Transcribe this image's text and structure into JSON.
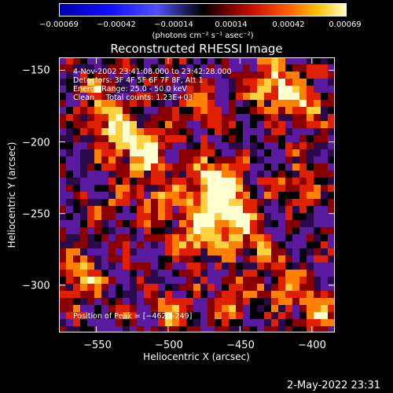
{
  "colorbar": {
    "ticks": [
      "−0.00069",
      "−0.00042",
      "−0.00014",
      "0.00014",
      "0.00042",
      "0.00069"
    ],
    "units": "(photons cm⁻² s⁻¹ asec⁻²)"
  },
  "info": {
    "time_range": "4-Nov-2002 23:41:08.000 to 23:42:28.000",
    "detectors": "Detectors: 3F 4F 5F 6F 7F 8F, Att 1",
    "energy": "Energy Range: 25.0 - 50.0 keV",
    "clean": "Clean     Total counts: 1.23E+03"
  },
  "peak_label": "Position of Peak = [−462,−249]",
  "timestamp": "2-May-2022 23:31",
  "chart_data": {
    "type": "heatmap",
    "title": "Reconstructed RHESSI Image",
    "xlabel": "Heliocentric X (arcsec)",
    "ylabel": "Heliocentric Y (arcsec)",
    "xlim": [
      -576,
      -384
    ],
    "ylim": [
      -333,
      -141
    ],
    "x_ticks": [
      -550,
      -500,
      -450,
      -400
    ],
    "x_tick_labels": [
      "−550",
      "−500",
      "−450",
      "−400"
    ],
    "y_ticks": [
      -150,
      -200,
      -250,
      -300
    ],
    "y_tick_labels": [
      "−150",
      "−200",
      "−250",
      "−300"
    ],
    "colorbar_range": [
      -0.00069,
      0.00069
    ],
    "peak": [
      -462,
      -249
    ],
    "colors": [
      "#2a0a4a",
      "#5a1aa0",
      "#000000",
      "#8a0000",
      "#e02000",
      "#ff8000",
      "#ffd040",
      "#ffffd0"
    ]
  }
}
